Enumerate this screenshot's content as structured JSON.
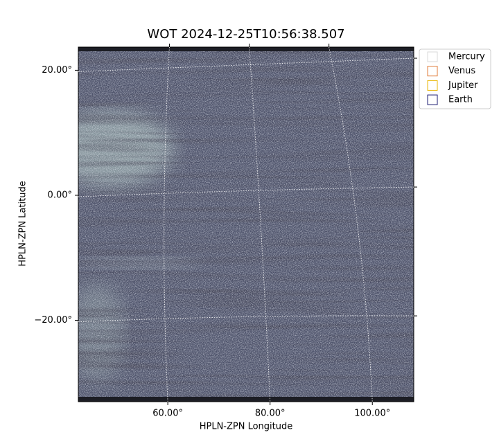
{
  "chart_data": {
    "type": "image",
    "title": "WOT 2024-12-25T10:56:38.507",
    "x_label": "HPLN-ZPN Longitude",
    "y_label": "HPLN-ZPN Latitude",
    "xlim": [
      42.5,
      108.1
    ],
    "ylim": [
      -33.0,
      23.7
    ],
    "xticks": [
      {
        "value": 60,
        "label": "60.00°"
      },
      {
        "value": 80,
        "label": "80.00°"
      },
      {
        "value": 100,
        "label": "100.00°"
      }
    ],
    "yticks": [
      {
        "value": 20,
        "label": "20.00°"
      },
      {
        "value": 0,
        "label": "0.00°"
      },
      {
        "value": -20,
        "label": "−20.00°"
      }
    ],
    "grid": true,
    "legend": "upper right",
    "series": [
      {
        "name": "Mercury",
        "color": "#d9d9d9"
      },
      {
        "name": "Venus",
        "color": "#e07b39"
      },
      {
        "name": "Jupiter",
        "color": "#e8b400"
      },
      {
        "name": "Earth",
        "color": "#1a1a70"
      }
    ]
  }
}
